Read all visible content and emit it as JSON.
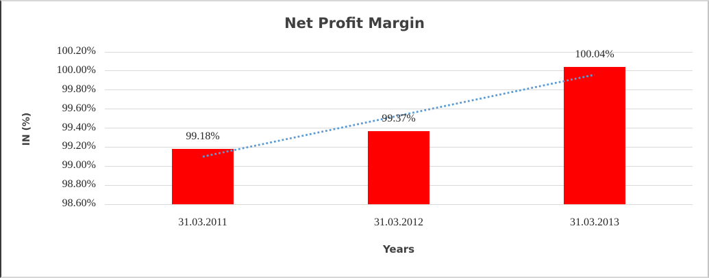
{
  "chart_data": {
    "type": "bar",
    "title": "Net Profit Margin",
    "xlabel": "Years",
    "ylabel": "IN (%)",
    "categories": [
      "31.03.2011",
      "31.03.2012",
      "31.03.2013"
    ],
    "series": [
      {
        "name": "Net Profit Margin",
        "values": [
          99.18,
          99.37,
          100.04
        ]
      }
    ],
    "data_labels": [
      "99.18%",
      "99.37%",
      "100.04%"
    ],
    "ylim": [
      98.6,
      100.2
    ],
    "ytick_step": 0.2,
    "ytick_labels": [
      "100.20%",
      "100.00%",
      "99.80%",
      "99.60%",
      "99.40%",
      "99.20%",
      "99.00%",
      "98.80%",
      "98.60%"
    ],
    "grid": true,
    "legend": "none",
    "trendline": {
      "type": "linear",
      "style": "dotted",
      "color": "#5B9BD5"
    },
    "colors": {
      "bar": "#FF0000",
      "gridline": "#D9D9D9",
      "title": "#404040",
      "axis_title": "#404040",
      "tick_label": "#262626"
    }
  }
}
